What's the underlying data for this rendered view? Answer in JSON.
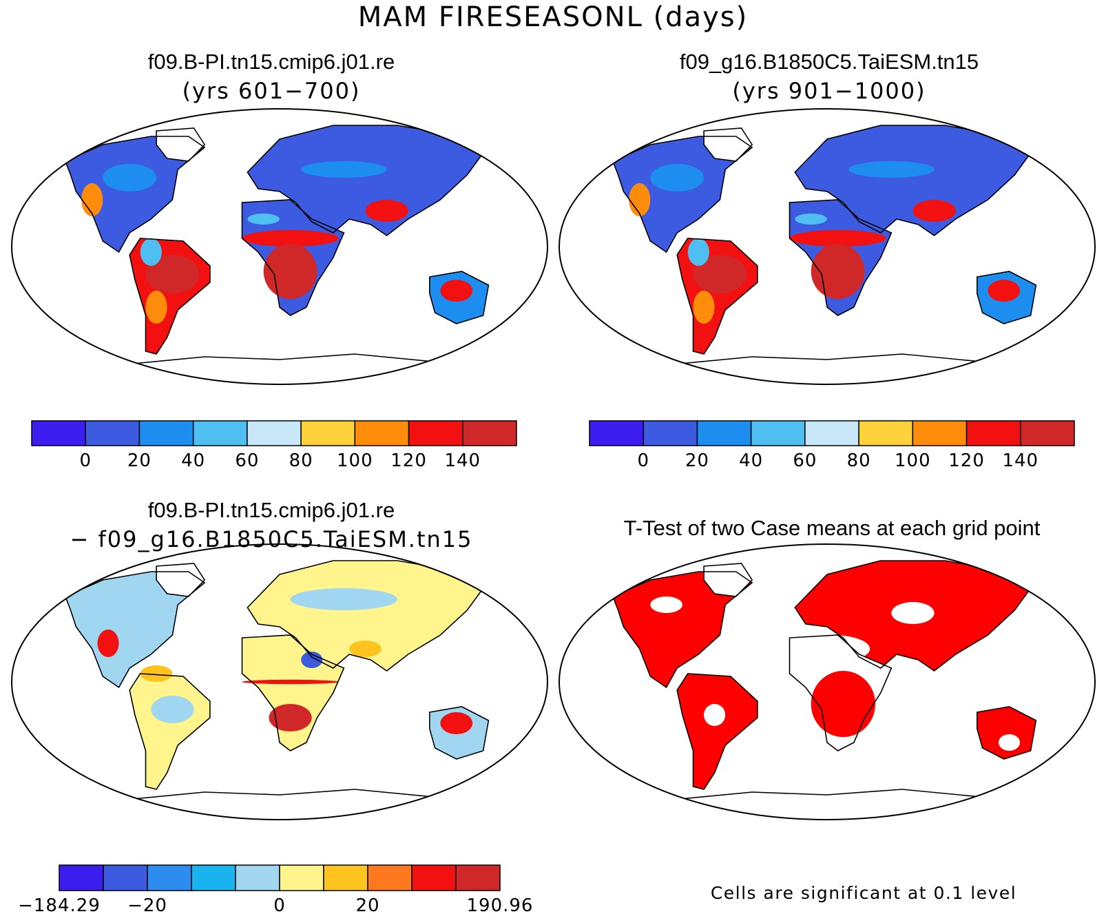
{
  "title": "MAM FIRESEASONL (days)",
  "panels": [
    {
      "id": "case1",
      "title": "f09.B-PI.tn15.cmip6.j01.re",
      "subtitle": "(yrs 601−700)",
      "field": "case1"
    },
    {
      "id": "case2",
      "title": "f09_g16.B1850C5.TaiESM.tn15",
      "subtitle": "(yrs 901−1000)",
      "field": "case2"
    },
    {
      "id": "diff",
      "title": "f09.B-PI.tn15.cmip6.j01.re",
      "subtitle": "− f09_g16.B1850C5.TaiESM.tn15",
      "field": "diff"
    },
    {
      "id": "ttest",
      "title": "T-Test of two Case means at each grid point",
      "subtitle": "",
      "field": "ttest"
    }
  ],
  "colorbars": {
    "absolute": {
      "colors": [
        "#3c1df0",
        "#3c5be0",
        "#1d8ef0",
        "#4fbff2",
        "#c8e7f8",
        "#ffd23c",
        "#ff8c0a",
        "#f21010",
        "#d02828"
      ],
      "labels": [
        "0",
        "20",
        "40",
        "60",
        "80",
        "100",
        "120",
        "140"
      ]
    },
    "difference": {
      "colors": [
        "#3c1df0",
        "#3c5be0",
        "#2d8cf0",
        "#19b4f0",
        "#a0d6f0",
        "#fff58c",
        "#ffc31e",
        "#ff781e",
        "#f21010",
        "#d02828"
      ],
      "labels": [
        {
          "text": "−184.29",
          "edge": 0
        },
        {
          "text": "−20",
          "edge": 2
        },
        {
          "text": "0",
          "edge": 5
        },
        {
          "text": "20",
          "edge": 7
        },
        {
          "text": "190.96",
          "edge": 10
        }
      ]
    }
  },
  "significance_note": "Cells are significant at 0.1 level",
  "colors": {
    "significant": "#ff0000",
    "outline": "#000000"
  }
}
